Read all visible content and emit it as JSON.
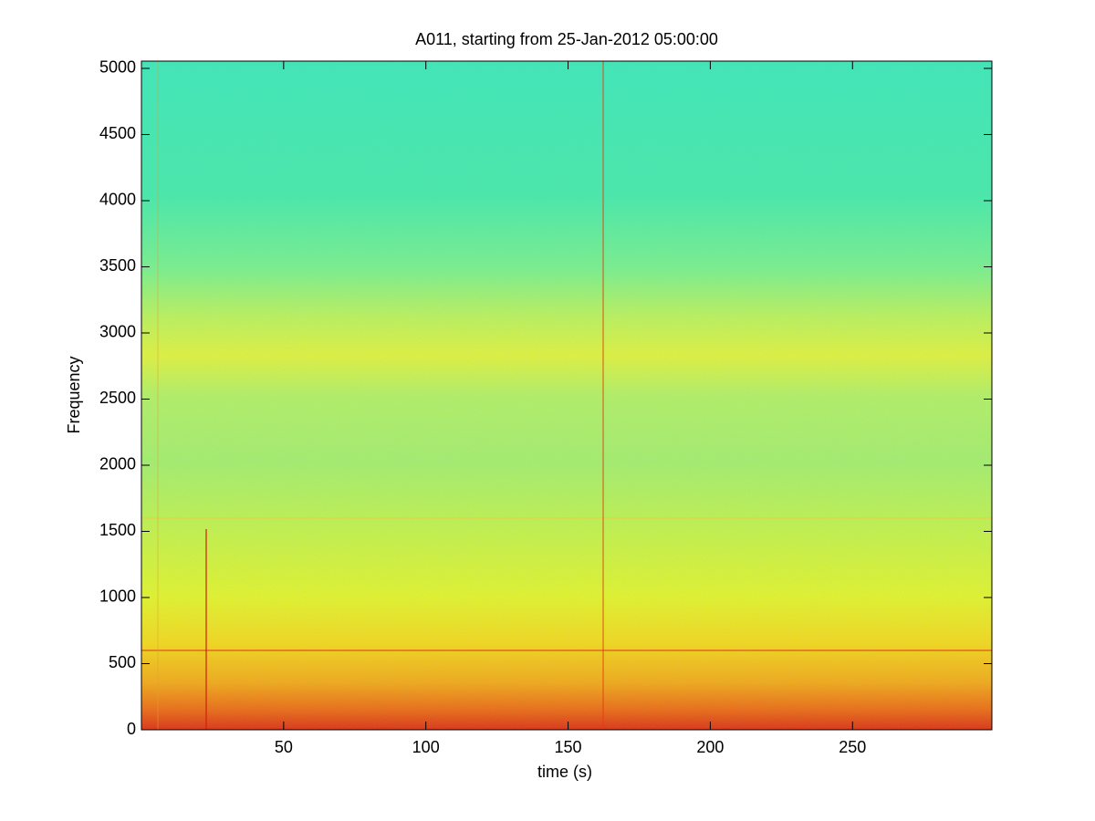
{
  "chart_data": {
    "type": "spectrogram",
    "title": "A011, starting from 25-Jan-2012 05:00:00",
    "x_label": "time (s)",
    "y_label": "Frequency",
    "xlim": [
      0,
      299
    ],
    "xticks": [
      50,
      100,
      150,
      200,
      250
    ],
    "ylim": [
      0,
      5055
    ],
    "yticks": [
      0,
      500,
      1000,
      1500,
      2000,
      2500,
      3000,
      3500,
      4000,
      4500,
      5000
    ],
    "grid": false
  }
}
